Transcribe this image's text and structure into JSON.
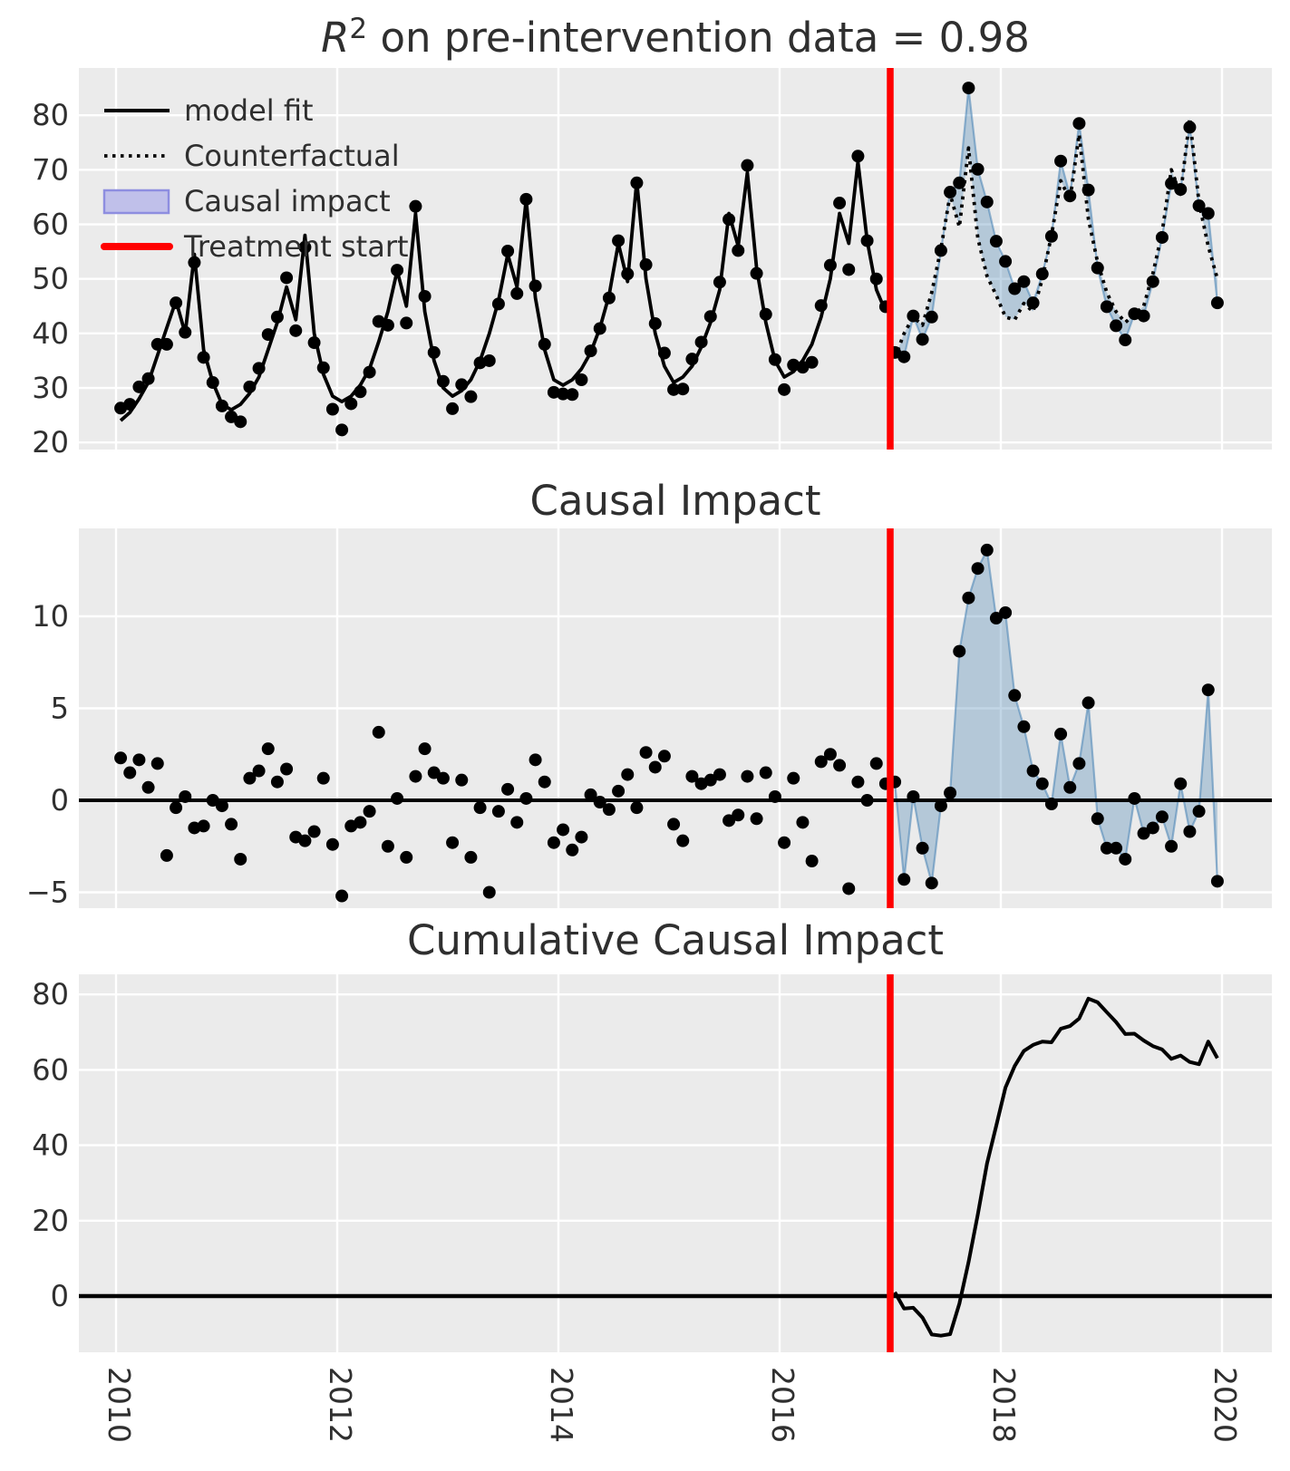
{
  "figure": {
    "background": "#ffffff",
    "panel_bg": "#ebebeb",
    "grid_color": "#ffffff",
    "text_color": "#2f2f2f",
    "colors": {
      "line": "#000000",
      "points": "#000000",
      "treatment_line": "#ff0000",
      "impact_fill": "rgba(70,130,180,0.33)",
      "impact_edge": "rgba(70,130,180,0.55)",
      "legend_patch_fill": "#c0c0ea",
      "legend_patch_edge": "#8e8ee0"
    }
  },
  "chart_data": [
    {
      "type": "line",
      "title": "R² on pre-intervention data = 0.98",
      "xlabel": "",
      "ylabel": "",
      "x_start_year": 2010,
      "x_frequency": "monthly",
      "xlim": [
        2009.66,
        2020.45
      ],
      "ylim": [
        18.5,
        88.5
      ],
      "xticks": [
        "2010",
        "2012",
        "2014",
        "2016",
        "2018",
        "2020"
      ],
      "xtick_years": [
        2010,
        2012,
        2014,
        2016,
        2018,
        2020
      ],
      "yticks": [
        20,
        30,
        40,
        50,
        60,
        70,
        80
      ],
      "treatment_start": 2017.0,
      "grid": true,
      "legend_position": "upper-left",
      "legend": [
        {
          "label": "model fit",
          "style": "solid-line"
        },
        {
          "label": "Counterfactual",
          "style": "dotted-line"
        },
        {
          "label": "Causal impact",
          "style": "patch"
        },
        {
          "label": "Treatment start",
          "style": "red-line"
        }
      ],
      "model_fit_pre": [
        24,
        25.5,
        28,
        31,
        36,
        41,
        46,
        40,
        54.5,
        37,
        31,
        27,
        26,
        27,
        29,
        32,
        37,
        42,
        48.5,
        42.5,
        58,
        40,
        32.5,
        28.5,
        27.5,
        28.5,
        30.5,
        33.5,
        38.5,
        44,
        51.5,
        45,
        62,
        44,
        35,
        30,
        28.5,
        29.5,
        31.5,
        35,
        40,
        46,
        54.5,
        48.5,
        64.5,
        46.5,
        37,
        31.5,
        30.5,
        31.5,
        33.5,
        36.5,
        41,
        47,
        56.5,
        49.5,
        68,
        50,
        40,
        34,
        31,
        32,
        34,
        37.5,
        42,
        48,
        62,
        56,
        69.5,
        52,
        42,
        35,
        32,
        33,
        35,
        38,
        43,
        50,
        62,
        56.5,
        71.5,
        57,
        48,
        44
      ],
      "observed_pre": [
        26.3,
        27,
        30.2,
        31.7,
        38,
        38,
        45.6,
        40.2,
        53,
        35.6,
        31,
        26.7,
        24.7,
        23.8,
        30.2,
        33.6,
        39.8,
        43,
        50.2,
        40.5,
        55.8,
        38.3,
        33.7,
        26.1,
        22.3,
        27.1,
        29.3,
        32.9,
        42.2,
        41.5,
        51.6,
        41.9,
        63.3,
        46.8,
        36.5,
        31.2,
        26.2,
        30.6,
        28.4,
        34.6,
        35,
        45.4,
        55.1,
        47.3,
        64.6,
        48.7,
        38,
        29.2,
        28.9,
        28.8,
        31.5,
        36.8,
        40.9,
        46.5,
        57,
        50.9,
        67.6,
        52.6,
        41.8,
        36.4,
        29.7,
        29.8,
        35.3,
        38.4,
        43.1,
        49.4,
        60.9,
        55.2,
        70.8,
        51,
        43.5,
        35.2,
        29.7,
        34.2,
        33.8,
        34.7,
        45.1,
        52.5,
        63.9,
        51.7,
        72.5,
        57,
        50,
        44.9
      ],
      "counterfactual_post": [
        35.5,
        40,
        43,
        41.5,
        47.5,
        55.5,
        65.5,
        59.5,
        74,
        57.5,
        50.5,
        47,
        43,
        42.5,
        45.5,
        44,
        50,
        58,
        68,
        64.5,
        76.5,
        61,
        53,
        47.5,
        44,
        42,
        43.5,
        45,
        51,
        58.5,
        70,
        65.5,
        79.5,
        64,
        56,
        50
      ],
      "observed_post": [
        36.5,
        35.7,
        43.2,
        38.9,
        43,
        55.2,
        65.9,
        67.6,
        85,
        70.1,
        64.1,
        56.9,
        53.2,
        48.2,
        49.5,
        45.6,
        50.9,
        57.8,
        71.6,
        65.2,
        78.5,
        66.3,
        52,
        44.9,
        41.4,
        38.8,
        43.6,
        43.2,
        49.5,
        57.6,
        67.5,
        66.4,
        77.8,
        63.4,
        62,
        45.6
      ]
    },
    {
      "type": "scatter",
      "title": "Causal Impact",
      "xlabel": "",
      "ylabel": "",
      "x_start_year": 2010,
      "x_frequency": "monthly",
      "ylim": [
        -7.5,
        14.8
      ],
      "yticks": [
        10,
        5,
        0,
        -5
      ],
      "treatment_start": 2017.0,
      "zero_line": true,
      "grid": true,
      "impact_pre": [
        2.3,
        1.5,
        2.2,
        0.7,
        2,
        -3,
        -0.4,
        0.2,
        -1.5,
        -1.4,
        0,
        -0.3,
        -1.3,
        -3.2,
        1.2,
        1.6,
        2.8,
        1,
        1.7,
        -2,
        -2.2,
        -1.7,
        1.2,
        -2.4,
        -5.2,
        -1.4,
        -1.2,
        -0.6,
        3.7,
        -2.5,
        0.1,
        -3.1,
        1.3,
        2.8,
        1.5,
        1.2,
        -2.3,
        1.1,
        -3.1,
        -0.4,
        -5,
        -0.6,
        0.6,
        -1.2,
        0.1,
        2.2,
        1,
        -2.3,
        -1.6,
        -2.7,
        -2,
        0.3,
        -0.1,
        -0.5,
        0.5,
        1.4,
        -0.4,
        2.6,
        1.8,
        2.4,
        -1.3,
        -2.2,
        1.3,
        0.9,
        1.1,
        1.4,
        -1.1,
        -0.8,
        1.3,
        -1,
        1.5,
        0.2,
        -2.3,
        1.2,
        -1.2,
        -3.3,
        2.1,
        2.5,
        1.9,
        -4.8,
        1,
        0,
        2,
        0.9
      ],
      "impact_post": [
        1,
        -4.3,
        0.2,
        -2.6,
        -4.5,
        -0.3,
        0.4,
        8.1,
        11,
        12.6,
        13.6,
        9.9,
        10.2,
        5.7,
        4,
        1.6,
        0.9,
        -0.2,
        3.6,
        0.7,
        2,
        5.3,
        -1,
        -2.6,
        -2.6,
        -3.2,
        0.1,
        -1.8,
        -1.5,
        -0.9,
        -2.5,
        0.9,
        -1.7,
        -0.6,
        6,
        -4.4
      ]
    },
    {
      "type": "line",
      "title": "Cumulative Causal Impact",
      "xlabel": "",
      "ylabel": "",
      "x_start_year": 2017,
      "x_frequency": "monthly",
      "ylim": [
        -15,
        85.5
      ],
      "yticks": [
        80,
        60,
        40,
        20,
        0
      ],
      "treatment_start": 2017.0,
      "zero_line": true,
      "grid": true,
      "cumulative_impact": [
        1,
        -3.3,
        -3.1,
        -5.7,
        -10.2,
        -10.5,
        -10.1,
        -2,
        9,
        21.6,
        35.2,
        45.1,
        55.3,
        61,
        65,
        66.6,
        67.5,
        67.3,
        70.9,
        71.6,
        73.6,
        78.9,
        77.9,
        75.3,
        72.7,
        69.5,
        69.6,
        67.8,
        66.3,
        65.4,
        62.9,
        63.8,
        62.1,
        61.5,
        67.5,
        63.1
      ]
    }
  ]
}
